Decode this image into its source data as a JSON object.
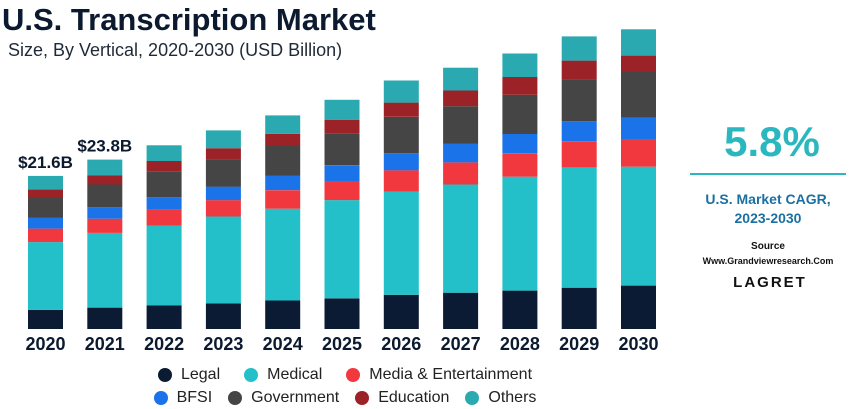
{
  "title": "U.S. Transcription Market",
  "subtitle": "Size, By Vertical, 2020-2030 (USD Billion)",
  "side": {
    "cagr_value": "5.8%",
    "cagr_label_line1": "U.S. Market CAGR,",
    "cagr_label_line2": "2023-2030",
    "source_label": "Source",
    "source_url": "Www.Grandviewresearch.Com",
    "logo_text": "LAGRET"
  },
  "colors": {
    "Legal": "#0b1b33",
    "Medical": "#23c0c9",
    "Media & Entertainment": "#f2383f",
    "BFSI": "#1a73e8",
    "Government": "#454545",
    "Education": "#9b2327",
    "Others": "#2aa9b0"
  },
  "legend_rows": [
    [
      "Legal",
      "Medical",
      "Media & Entertainment"
    ],
    [
      "BFSI",
      "Government",
      "Education",
      "Others"
    ]
  ],
  "chart_data": {
    "type": "bar",
    "stacked": true,
    "title": "U.S. Transcription Market",
    "subtitle": "Size, By Vertical, 2020-2030 (USD Billion)",
    "categories": [
      "2020",
      "2021",
      "2022",
      "2023",
      "2024",
      "2025",
      "2026",
      "2027",
      "2028",
      "2029",
      "2030"
    ],
    "series": [
      {
        "name": "Legal",
        "values": [
          2.7,
          3.0,
          3.3,
          3.6,
          4.0,
          4.3,
          4.8,
          5.1,
          5.4,
          5.8,
          6.1
        ]
      },
      {
        "name": "Medical",
        "values": [
          9.5,
          10.5,
          11.2,
          12.2,
          12.9,
          13.8,
          14.5,
          15.2,
          16.0,
          16.9,
          16.7
        ]
      },
      {
        "name": "Media & Entertainment",
        "values": [
          1.9,
          2.0,
          2.3,
          2.3,
          2.6,
          2.6,
          3.0,
          3.1,
          3.3,
          3.6,
          3.8
        ]
      },
      {
        "name": "BFSI",
        "values": [
          1.5,
          1.6,
          1.7,
          1.9,
          2.0,
          2.3,
          2.4,
          2.6,
          2.7,
          2.9,
          3.1
        ]
      },
      {
        "name": "Government",
        "values": [
          2.8,
          3.2,
          3.6,
          3.8,
          4.2,
          4.5,
          5.1,
          5.3,
          5.5,
          5.9,
          6.4
        ]
      },
      {
        "name": "Education",
        "values": [
          1.2,
          1.3,
          1.5,
          1.6,
          1.7,
          1.9,
          2.0,
          2.2,
          2.5,
          2.6,
          2.3
        ]
      },
      {
        "name": "Others",
        "values": [
          1.9,
          2.2,
          2.2,
          2.5,
          2.6,
          2.8,
          3.1,
          3.2,
          3.3,
          3.4,
          3.7
        ]
      }
    ],
    "data_labels": [
      {
        "category": "2020",
        "text": "$21.6B"
      },
      {
        "category": "2021",
        "text": "$23.8B"
      }
    ],
    "ylim": [
      0,
      42
    ],
    "grid": false,
    "legend_position": "bottom"
  }
}
